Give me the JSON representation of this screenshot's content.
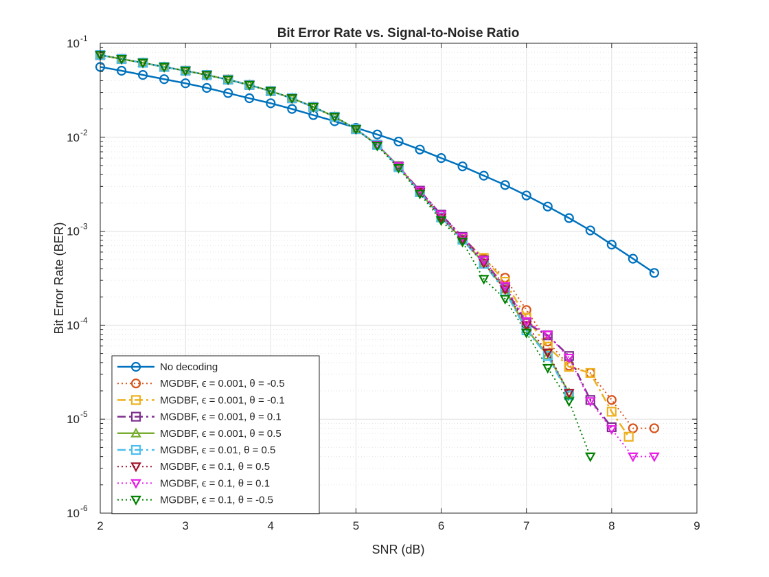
{
  "chart_data": {
    "type": "line",
    "title": "Bit Error Rate vs. Signal-to-Noise Ratio",
    "xlabel": "SNR (dB)",
    "ylabel": "Bit Error Rate (BER)",
    "xlim": [
      2,
      9
    ],
    "ylim": [
      1e-06,
      0.1
    ],
    "yscale": "log",
    "grid": true,
    "minor_grid": true,
    "legend_position": "bottom-left",
    "x_ticks": [
      "2",
      "3",
      "4",
      "5",
      "6",
      "7",
      "8",
      "9"
    ],
    "y_ticks": [
      {
        "base": "10",
        "exp": "-6",
        "value": 1e-06
      },
      {
        "base": "10",
        "exp": "-5",
        "value": 1e-05
      },
      {
        "base": "10",
        "exp": "-4",
        "value": 0.0001
      },
      {
        "base": "10",
        "exp": "-3",
        "value": 0.001
      },
      {
        "base": "10",
        "exp": "-2",
        "value": 0.01
      },
      {
        "base": "10",
        "exp": "-1",
        "value": 0.1
      }
    ],
    "series": [
      {
        "name": "No decoding",
        "color": "#0072BD",
        "dash": "solid",
        "marker": "circle",
        "width": 2.5,
        "x": [
          2,
          2.25,
          2.5,
          2.75,
          3,
          3.25,
          3.5,
          3.75,
          4,
          4.25,
          4.5,
          4.75,
          5,
          5.25,
          5.5,
          5.75,
          6,
          6.25,
          6.5,
          6.75,
          7,
          7.25,
          7.5,
          7.75,
          8,
          8.25,
          8.5
        ],
        "y": [
          0.056,
          0.051,
          0.046,
          0.0415,
          0.0375,
          0.0335,
          0.0295,
          0.026,
          0.023,
          0.02,
          0.0172,
          0.0148,
          0.0126,
          0.0107,
          0.009,
          0.0074,
          0.006,
          0.0049,
          0.0039,
          0.0031,
          0.0024,
          0.00183,
          0.00138,
          0.00102,
          0.00072,
          0.00051,
          0.00036
        ]
      },
      {
        "name": "MGDBF, ϵ = 0.001, θ = -0.5",
        "color": "#D95319",
        "dash": "dotted",
        "marker": "circle",
        "width": 2,
        "x": [
          2,
          2.25,
          2.5,
          2.75,
          3,
          3.25,
          3.5,
          3.75,
          4,
          4.25,
          4.5,
          4.75,
          5,
          5.25,
          5.5,
          5.75,
          6,
          6.25,
          6.5,
          6.75,
          7,
          7.25,
          7.5,
          7.75,
          8,
          8.25,
          8.5
        ],
        "y": [
          0.075,
          0.068,
          0.062,
          0.056,
          0.051,
          0.046,
          0.041,
          0.036,
          0.031,
          0.026,
          0.021,
          0.0165,
          0.0122,
          0.0083,
          0.0049,
          0.0027,
          0.00148,
          0.00086,
          0.00051,
          0.00032,
          0.000145,
          6.7e-05,
          3.7e-05,
          3.1e-05,
          1.6e-05,
          8e-06,
          8e-06
        ]
      },
      {
        "name": "MGDBF, ϵ = 0.001, θ = -0.1",
        "color": "#EDB120",
        "dash": "dashdot",
        "marker": "square",
        "width": 2.5,
        "x": [
          2,
          2.25,
          2.5,
          2.75,
          3,
          3.25,
          3.5,
          3.75,
          4,
          4.25,
          4.5,
          4.75,
          5,
          5.25,
          5.5,
          5.75,
          6,
          6.25,
          6.5,
          6.75,
          7,
          7.25,
          7.5,
          7.75,
          8,
          8.2
        ],
        "y": [
          0.075,
          0.068,
          0.062,
          0.056,
          0.051,
          0.046,
          0.041,
          0.036,
          0.031,
          0.026,
          0.021,
          0.0165,
          0.0122,
          0.0083,
          0.0049,
          0.0027,
          0.00148,
          0.00085,
          0.00052,
          0.00029,
          0.00012,
          5.9e-05,
          3.6e-05,
          3.1e-05,
          1.2e-05,
          6.5e-06
        ]
      },
      {
        "name": "MGDBF, ϵ = 0.001, θ = 0.1",
        "color": "#7E2F8E",
        "dash": "dashdot",
        "marker": "square",
        "width": 2.5,
        "x": [
          2,
          2.25,
          2.5,
          2.75,
          3,
          3.25,
          3.5,
          3.75,
          4,
          4.25,
          4.5,
          4.75,
          5,
          5.25,
          5.5,
          5.75,
          6,
          6.25,
          6.5,
          6.75,
          7,
          7.25,
          7.5,
          7.75,
          8
        ],
        "y": [
          0.075,
          0.068,
          0.062,
          0.056,
          0.051,
          0.046,
          0.041,
          0.036,
          0.031,
          0.026,
          0.021,
          0.0165,
          0.0122,
          0.0083,
          0.0049,
          0.0027,
          0.0015,
          0.00087,
          0.00049,
          0.00025,
          0.000105,
          7.8e-05,
          4.7e-05,
          1.6e-05,
          8.2e-06
        ]
      },
      {
        "name": "MGDBF, ϵ = 0.001, θ = 0.5",
        "color": "#77AC30",
        "dash": "solid",
        "marker": "triangle-up",
        "width": 2.5,
        "x": [
          2,
          2.25,
          2.5,
          2.75,
          3,
          3.25,
          3.5,
          3.75,
          4,
          4.25,
          4.5,
          4.75,
          5,
          5.25,
          5.5,
          5.75,
          6,
          6.25,
          6.5,
          6.75,
          7,
          7.25,
          7.5
        ],
        "y": [
          0.075,
          0.068,
          0.062,
          0.056,
          0.051,
          0.046,
          0.041,
          0.036,
          0.031,
          0.026,
          0.021,
          0.0165,
          0.0122,
          0.0083,
          0.0049,
          0.0026,
          0.0014,
          0.00082,
          0.00046,
          0.00024,
          9.1e-05,
          4.8e-05,
          1.9e-05
        ]
      },
      {
        "name": "MGDBF, ϵ = 0.01, θ = 0.5",
        "color": "#4DBEEE",
        "dash": "dashdot",
        "marker": "square",
        "width": 2.5,
        "x": [
          2,
          2.25,
          2.5,
          2.75,
          3,
          3.25,
          3.5,
          3.75,
          4,
          4.25,
          4.5,
          4.75,
          5,
          5.25,
          5.5,
          5.75,
          6,
          6.25,
          6.5,
          6.75,
          7,
          7.25,
          7.5
        ],
        "y": [
          0.075,
          0.068,
          0.062,
          0.056,
          0.051,
          0.046,
          0.041,
          0.036,
          0.031,
          0.026,
          0.021,
          0.0165,
          0.0122,
          0.0083,
          0.0048,
          0.0026,
          0.0014,
          0.00081,
          0.00045,
          0.00023,
          8.8e-05,
          4.7e-05,
          1.8e-05
        ]
      },
      {
        "name": "MGDBF, ϵ = 0.1, θ = 0.5",
        "color": "#A2142F",
        "dash": "dotted",
        "marker": "triangle-down",
        "width": 2,
        "x": [
          2,
          2.25,
          2.5,
          2.75,
          3,
          3.25,
          3.5,
          3.75,
          4,
          4.25,
          4.5,
          4.75,
          5,
          5.25,
          5.5,
          5.75,
          6,
          6.25,
          6.5,
          6.75,
          7,
          7.25,
          7.5
        ],
        "y": [
          0.075,
          0.068,
          0.062,
          0.056,
          0.051,
          0.046,
          0.041,
          0.036,
          0.031,
          0.026,
          0.021,
          0.0165,
          0.0122,
          0.0083,
          0.0049,
          0.0026,
          0.0014,
          0.00082,
          0.00046,
          0.00024,
          0.0001,
          5.1e-05,
          1.9e-05
        ]
      },
      {
        "name": "MGDBF, ϵ = 0.1, θ = 0.1",
        "color": "#E61EE6",
        "dash": "dotted",
        "marker": "triangle-down",
        "width": 2,
        "x": [
          2,
          2.25,
          2.5,
          2.75,
          3,
          3.25,
          3.5,
          3.75,
          4,
          4.25,
          4.5,
          4.75,
          5,
          5.25,
          5.5,
          5.75,
          6,
          6.25,
          6.5,
          6.75,
          7,
          7.25,
          7.5,
          7.75,
          8,
          8.25,
          8.5
        ],
        "y": [
          0.075,
          0.068,
          0.062,
          0.056,
          0.051,
          0.046,
          0.041,
          0.036,
          0.031,
          0.026,
          0.021,
          0.0165,
          0.0122,
          0.0083,
          0.0049,
          0.0027,
          0.0015,
          0.00087,
          0.00049,
          0.00026,
          0.00011,
          7.9e-05,
          4.5e-05,
          1.55e-05,
          7.8e-06,
          4e-06,
          4e-06
        ]
      },
      {
        "name": "MGDBF, ϵ = 0.1, θ = -0.5",
        "color": "#008000",
        "dash": "dotted",
        "marker": "triangle-down",
        "width": 2,
        "x": [
          2,
          2.25,
          2.5,
          2.75,
          3,
          3.25,
          3.5,
          3.75,
          4,
          4.25,
          4.5,
          4.75,
          5,
          5.25,
          5.5,
          5.75,
          6,
          6.25,
          6.5,
          6.75,
          7,
          7.25,
          7.5,
          7.75
        ],
        "y": [
          0.075,
          0.068,
          0.062,
          0.056,
          0.051,
          0.046,
          0.041,
          0.036,
          0.031,
          0.026,
          0.021,
          0.0165,
          0.0122,
          0.0081,
          0.0047,
          0.0025,
          0.0013,
          0.00077,
          0.00031,
          0.00019,
          8.3e-05,
          3.5e-05,
          1.55e-05,
          4e-06
        ]
      }
    ]
  }
}
